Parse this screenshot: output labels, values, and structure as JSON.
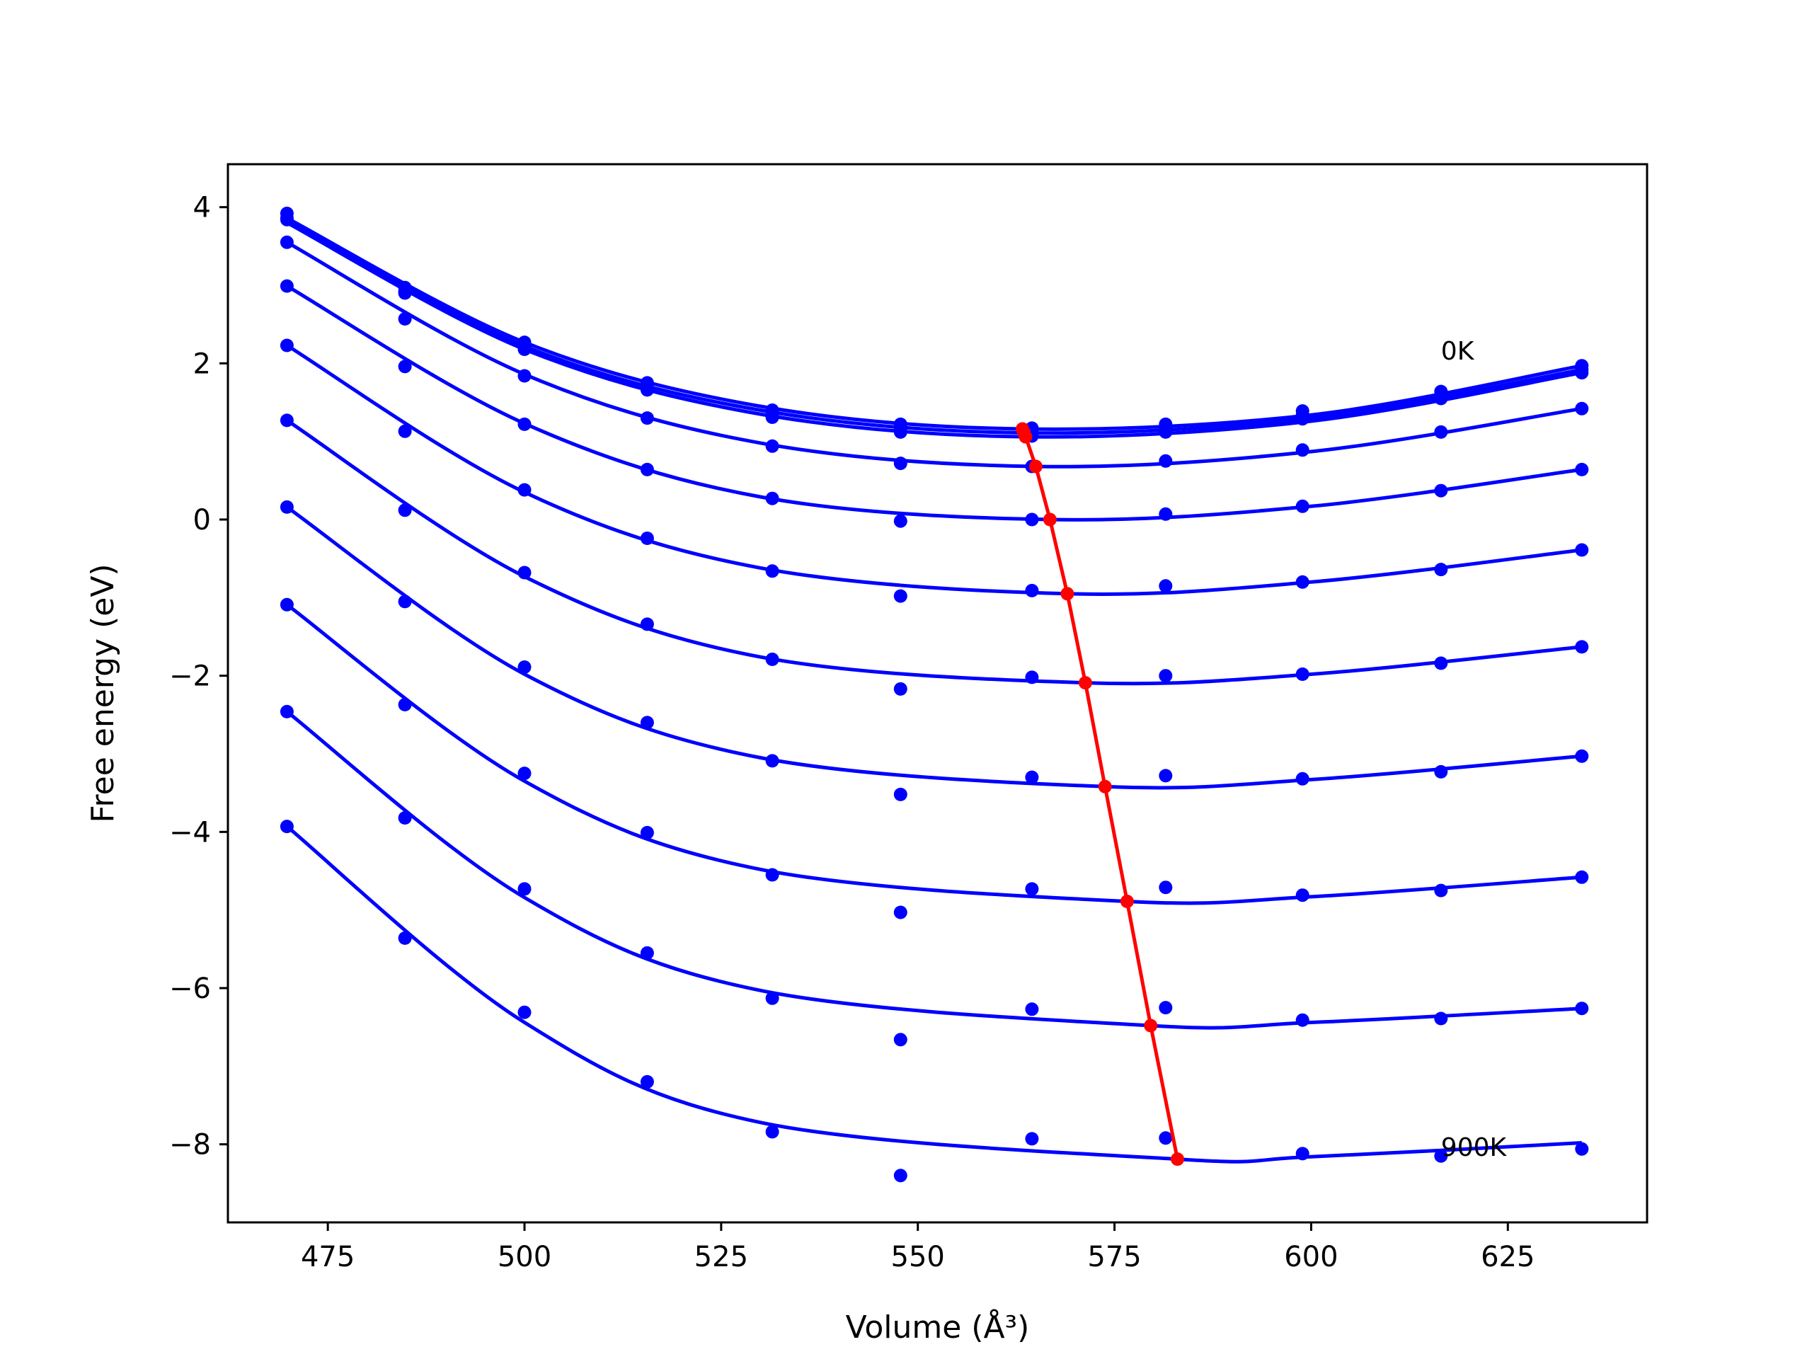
{
  "chart_data": {
    "type": "line",
    "title": "",
    "xlabel": "Volume (Å³)",
    "ylabel": "Free energy (eV)",
    "xlim": [
      462.3,
      642.7
    ],
    "ylim": [
      -9.0,
      4.55
    ],
    "xticks": [
      {
        "value": 475,
        "label": "475"
      },
      {
        "value": 500,
        "label": "500"
      },
      {
        "value": 525,
        "label": "525"
      },
      {
        "value": 550,
        "label": "550"
      },
      {
        "value": 575,
        "label": "575"
      },
      {
        "value": 600,
        "label": "600"
      },
      {
        "value": 625,
        "label": "625"
      }
    ],
    "yticks": [
      {
        "value": 4,
        "label": "4"
      },
      {
        "value": 2,
        "label": "2"
      },
      {
        "value": 0,
        "label": "0"
      },
      {
        "value": -2,
        "label": "−2"
      },
      {
        "value": -4,
        "label": "−4"
      },
      {
        "value": -6,
        "label": "−6"
      },
      {
        "value": -8,
        "label": "−8"
      }
    ],
    "grid": false,
    "legend": "none",
    "colors": {
      "isotherms": "#0000ff",
      "minimum_path": "#ff0000"
    },
    "volumes": [
      469.8,
      484.8,
      500.0,
      515.6,
      531.5,
      547.8,
      564.5,
      581.5,
      598.9,
      616.5,
      634.4
    ],
    "series": [
      {
        "points": [
          3.92,
          2.97,
          2.27,
          1.75,
          1.4,
          1.22,
          1.17,
          1.22,
          1.39,
          1.64,
          1.97
        ],
        "fit": [
          [
            469.8,
            3.86
          ],
          [
            500.0,
            2.27
          ],
          [
            530.0,
            1.45
          ],
          [
            563.3,
            1.16
          ],
          [
            600.0,
            1.34
          ],
          [
            634.4,
            1.97
          ]
        ]
      },
      {
        "points": [
          3.86,
          2.92,
          2.2,
          1.69,
          1.35,
          1.17,
          1.11,
          1.16,
          1.34,
          1.6,
          1.92
        ],
        "fit": [
          [
            469.8,
            3.83
          ],
          [
            500.0,
            2.22
          ],
          [
            530.0,
            1.4
          ],
          [
            563.5,
            1.11
          ],
          [
            600.0,
            1.3
          ],
          [
            634.4,
            1.92
          ]
        ]
      },
      {
        "points": [
          3.84,
          2.9,
          2.18,
          1.66,
          1.31,
          1.12,
          1.07,
          1.12,
          1.29,
          1.55,
          1.88
        ],
        "fit": [
          [
            469.8,
            3.8
          ],
          [
            500.0,
            2.18
          ],
          [
            530.0,
            1.35
          ],
          [
            563.7,
            1.06
          ],
          [
            600.0,
            1.26
          ],
          [
            634.4,
            1.88
          ]
        ]
      },
      {
        "points": [
          3.55,
          2.57,
          1.84,
          1.3,
          0.94,
          0.72,
          0.68,
          0.75,
          0.89,
          1.12,
          1.42
        ],
        "fit": [
          [
            469.8,
            3.55
          ],
          [
            500.0,
            1.86
          ],
          [
            530.0,
            0.98
          ],
          [
            565.0,
            0.68
          ],
          [
            600.0,
            0.87
          ],
          [
            634.4,
            1.42
          ]
        ]
      },
      {
        "points": [
          2.99,
          1.96,
          1.22,
          0.64,
          0.27,
          -0.02,
          0.0,
          0.07,
          0.17,
          0.37,
          0.64
        ],
        "fit": [
          [
            469.8,
            2.99
          ],
          [
            500.0,
            1.23
          ],
          [
            530.0,
            0.29
          ],
          [
            566.8,
            0.0
          ],
          [
            600.0,
            0.17
          ],
          [
            634.4,
            0.64
          ]
        ]
      },
      {
        "points": [
          2.23,
          1.13,
          0.38,
          -0.24,
          -0.66,
          -0.98,
          -0.91,
          -0.85,
          -0.8,
          -0.64,
          -0.39
        ],
        "fit": [
          [
            469.8,
            2.23
          ],
          [
            500.0,
            0.35
          ],
          [
            530.0,
            -0.62
          ],
          [
            569.0,
            -0.95
          ],
          [
            600.0,
            -0.8
          ],
          [
            634.4,
            -0.39
          ]
        ]
      },
      {
        "points": [
          1.27,
          0.12,
          -0.68,
          -1.34,
          -1.79,
          -2.17,
          -2.02,
          -2.0,
          -1.98,
          -1.84,
          -1.63
        ],
        "fit": [
          [
            469.8,
            1.27
          ],
          [
            500.0,
            -0.73
          ],
          [
            530.0,
            -1.76
          ],
          [
            571.3,
            -2.09
          ],
          [
            600.0,
            -1.98
          ],
          [
            634.4,
            -1.63
          ]
        ]
      },
      {
        "points": [
          0.16,
          -1.05,
          -1.89,
          -2.6,
          -3.09,
          -3.52,
          -3.3,
          -3.28,
          -3.32,
          -3.23,
          -3.03
        ],
        "fit": [
          [
            469.8,
            0.16
          ],
          [
            500.0,
            -1.98
          ],
          [
            530.0,
            -3.05
          ],
          [
            573.8,
            -3.42
          ],
          [
            600.0,
            -3.33
          ],
          [
            634.4,
            -3.03
          ]
        ]
      },
      {
        "points": [
          -1.09,
          -2.37,
          -3.25,
          -4.01,
          -4.55,
          -5.03,
          -4.73,
          -4.71,
          -4.81,
          -4.75,
          -4.58
        ],
        "fit": [
          [
            469.8,
            -1.09
          ],
          [
            500.0,
            -3.35
          ],
          [
            530.0,
            -4.48
          ],
          [
            576.6,
            -4.89
          ],
          [
            600.0,
            -4.83
          ],
          [
            634.4,
            -4.58
          ]
        ]
      },
      {
        "points": [
          -2.46,
          -3.82,
          -4.73,
          -5.55,
          -6.13,
          -6.66,
          -6.27,
          -6.25,
          -6.41,
          -6.39,
          -6.26
        ],
        "fit": [
          [
            469.8,
            -2.46
          ],
          [
            500.0,
            -4.84
          ],
          [
            530.0,
            -6.03
          ],
          [
            579.6,
            -6.48
          ],
          [
            600.0,
            -6.44
          ],
          [
            634.4,
            -6.26
          ]
        ]
      },
      {
        "points": [
          -3.93,
          -5.36,
          -6.31,
          -7.2,
          -7.84,
          -8.4,
          -7.93,
          -7.92,
          -8.12,
          -8.15,
          -8.06
        ],
        "fit": [
          [
            469.8,
            -3.93
          ],
          [
            500.0,
            -6.44
          ],
          [
            530.0,
            -7.72
          ],
          [
            583.0,
            -8.19
          ],
          [
            600.0,
            -8.16
          ],
          [
            634.4,
            -7.98
          ]
        ]
      }
    ],
    "minimum_path": {
      "x": [
        563.3,
        563.5,
        563.7,
        565.0,
        566.8,
        569.0,
        571.3,
        573.8,
        576.6,
        579.6,
        583.0
      ],
      "y": [
        1.16,
        1.11,
        1.06,
        0.68,
        0.0,
        -0.95,
        -2.09,
        -3.42,
        -4.89,
        -6.48,
        -8.19
      ]
    },
    "annotations": [
      {
        "text": "0K",
        "x": 616.5,
        "y": 2.05
      },
      {
        "text": "900K",
        "x": 616.5,
        "y": -8.15
      }
    ]
  }
}
